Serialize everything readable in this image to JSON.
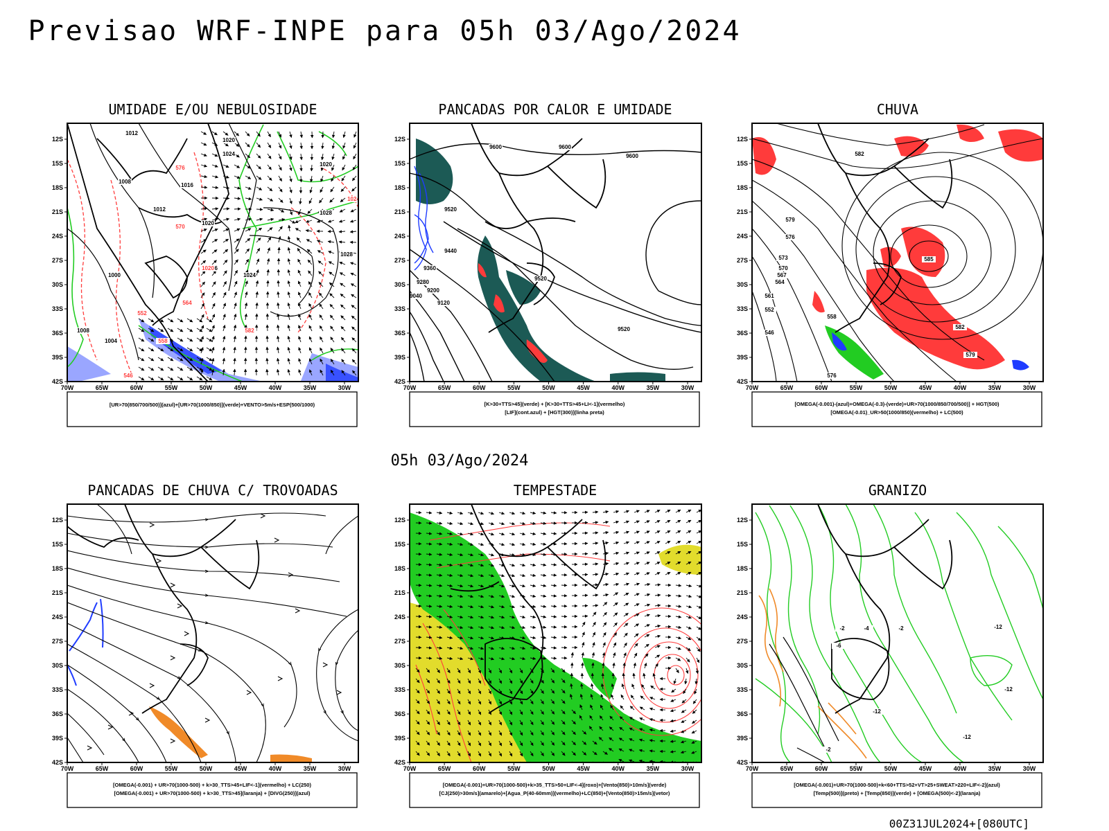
{
  "header": {
    "title": "Previsao WRF-INPE  para 05h 03/Ago/2024"
  },
  "mid_label": "05h 03/Ago/2024",
  "footer": "00Z31JUL2024+[080UTC]",
  "axes": {
    "lat_labels": [
      "12S",
      "15S",
      "18S",
      "21S",
      "24S",
      "27S",
      "30S",
      "33S",
      "36S",
      "39S",
      "42S"
    ],
    "lon_labels": [
      "70W",
      "65W",
      "60W",
      "55W",
      "50W",
      "45W",
      "40W",
      "35W",
      "30W"
    ]
  },
  "panels": [
    {
      "title": "UMIDADE E/OU NEBULOSIDADE",
      "caption": [
        "[UR>70(850/700/500)](azul)+[UR>70(1000/850)](verde)+VENTO>5m/s+ESP(500/1000)"
      ],
      "contour_labels": [
        "1012",
        "1008",
        "1012",
        "1016",
        "1020",
        "1024",
        "1020",
        "1028",
        "1020",
        "1016",
        "1024",
        "1028",
        "1000",
        "1004",
        "1008",
        "1020",
        "1024",
        "552",
        "558",
        "564",
        "570",
        "576",
        "582",
        "546"
      ]
    },
    {
      "title": "PANCADAS POR CALOR E UMIDADE",
      "caption": [
        "[K>30+TTS>45](verde) + [K>30+TTS>45+LI<-1](vermelho)",
        "[LIF](cont.azul) + [HGT(300)](linha preta)"
      ],
      "contour_labels": [
        "9600",
        "9600",
        "9600",
        "9520",
        "9440",
        "9360",
        "9280",
        "9200",
        "9120",
        "9040",
        "9520",
        "9520"
      ]
    },
    {
      "title": "CHUVA",
      "caption": [
        "[OMEGA(-0.001)-(azul)+OMEGA(-0.3)-(verde)+UR>70(1000/850/700/500)] + HGT(500)",
        "[OMEGA(-0.01)_UR>50(1000/850)(vermelho) + LC(500)"
      ],
      "contour_labels": [
        "582",
        "585",
        "579",
        "576",
        "573",
        "570",
        "567",
        "564",
        "561",
        "558",
        "552",
        "546",
        "582",
        "579",
        "576"
      ]
    },
    {
      "title": "PANCADAS DE CHUVA C/ TROVOADAS",
      "caption": [
        "[OMEGA(-0.001) + UR>70(1000-500) + k>30_TTS>45+LIF<-1](vermelho) + LC(250)",
        "[OMEGA(-0.001) + UR>70(1000-500) + k>30_TTS>45](laranja) + [DIVG(250)](azul)"
      ],
      "contour_labels": []
    },
    {
      "title": "TEMPESTADE",
      "caption": [
        "[OMEGA(-0.001)+UR>70(1000-500)+k>35_TTS>50+LIF<-4](roxo)+[Vento(850)>10m/s](verde)",
        "[CJ(250)>30m/s](amarelo)+[Agua_P(40-60mm)](vermelho)+LC(850)+[Vento(850)>15m/s](vetor)"
      ],
      "contour_labels": []
    },
    {
      "title": "GRANIZO",
      "caption": [
        "[OMEGA(-0.001)+UR>70(1000-500)+k<60+TTS>52+VT>25+SWEAT>220+LIF<-2](azul)",
        "[Temp(500)](preto) + [Temp(850)](verde) + [OMEGA(500)<-2](laranja)"
      ],
      "contour_labels": [
        "-2",
        "-2",
        "-12",
        "-12",
        "-12",
        "-12",
        "-6",
        "-2",
        "-4"
      ]
    }
  ],
  "colors": {
    "black": "#000000",
    "blue": "#1f3cff",
    "light_blue": "#9aa6ff",
    "green": "#22cc22",
    "dark_green": "#1f9d1f",
    "red": "#ff3b3b",
    "teal": "#1c5a55",
    "yellow": "#e2dc2c",
    "orange": "#f08a28"
  }
}
